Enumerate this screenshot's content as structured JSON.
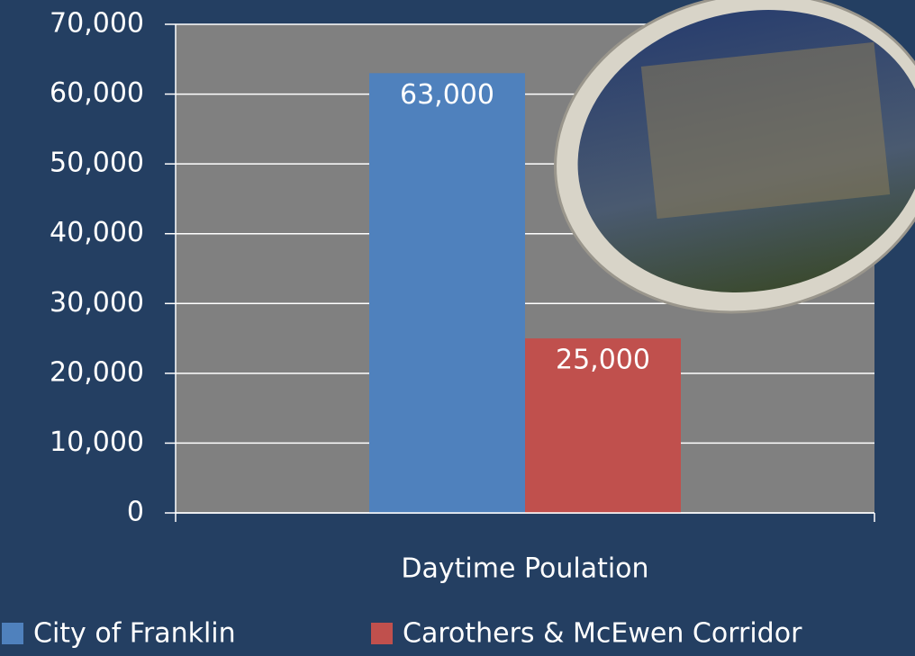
{
  "chart_data": {
    "type": "bar",
    "categories": [
      "Daytime Poulation"
    ],
    "series": [
      {
        "name": "City of Franklin",
        "color": "#4f81bd",
        "values": [
          63000
        ],
        "value_labels": [
          "63,000"
        ]
      },
      {
        "name": "Carothers & McEwen Corridor",
        "color": "#c0504d",
        "values": [
          25000
        ],
        "value_labels": [
          "25,000"
        ]
      }
    ],
    "ylim": [
      0,
      70000
    ],
    "yticks": [
      {
        "value": 0,
        "label": "0"
      },
      {
        "value": 10000,
        "label": "10,000"
      },
      {
        "value": 20000,
        "label": "20,000"
      },
      {
        "value": 30000,
        "label": "30,000"
      },
      {
        "value": 40000,
        "label": "40,000"
      },
      {
        "value": 50000,
        "label": "50,000"
      },
      {
        "value": 60000,
        "label": "60,000"
      },
      {
        "value": 70000,
        "label": "70,000"
      }
    ],
    "grid": true,
    "legend": "bottom"
  }
}
